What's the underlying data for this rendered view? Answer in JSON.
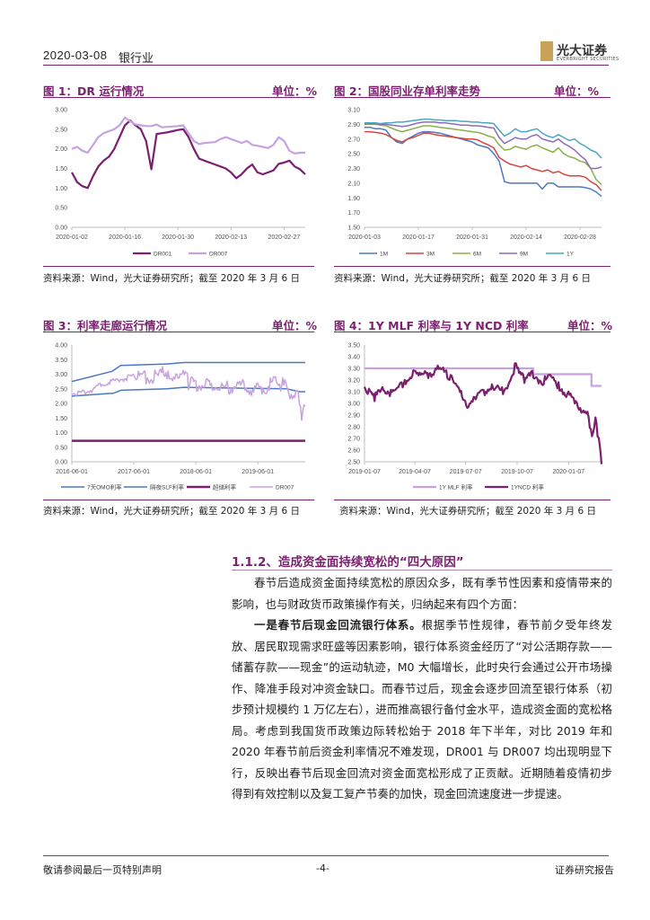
{
  "header": {
    "date": "2020-03-08",
    "industry": "银行业",
    "logo_cn": "光大证券",
    "logo_en": "EVERBRIGHT SECURITIES"
  },
  "colors": {
    "brand": "#7b1f6e",
    "light_purple": "#c8a2e0",
    "blue": "#4a78c4",
    "red": "#d8453a",
    "green": "#8ab04a",
    "mid_purple": "#8c6cb8",
    "teal": "#4aa7c4"
  },
  "charts": [
    {
      "title": "图 1：DR 运行情况",
      "unit": "单位：%",
      "source": "资料来源：Wind，光大证券研究所；截至 2020 年 3 月 6 日",
      "chart_data": {
        "type": "line",
        "ylim": [
          0,
          3
        ],
        "yticks": [
          "0.00",
          "0.50",
          "1.00",
          "1.50",
          "2.00",
          "2.50",
          "3.00"
        ],
        "xticks": [
          "2020-01-02",
          "2020-01-16",
          "2020-01-30",
          "2020-02-13",
          "2020-02-27"
        ],
        "n": 45,
        "series": [
          {
            "name": "DR001",
            "color": "#7b1f6e",
            "values": [
              1.4,
              1.15,
              1.05,
              1.0,
              1.3,
              1.55,
              1.7,
              1.8,
              2.0,
              2.3,
              2.6,
              2.72,
              2.6,
              2.5,
              2.2,
              1.48,
              2.38,
              2.4,
              2.42,
              2.45,
              2.48,
              2.5,
              2.3,
              2.0,
              1.75,
              1.7,
              1.65,
              1.6,
              1.55,
              1.5,
              1.4,
              1.25,
              1.35,
              1.5,
              1.6,
              1.4,
              1.35,
              1.4,
              1.45,
              1.62,
              1.65,
              1.7,
              1.55,
              1.48,
              1.35
            ]
          },
          {
            "name": "DR007",
            "color": "#c8a2e0",
            "values": [
              2.0,
              2.05,
              1.95,
              1.9,
              2.1,
              2.3,
              2.4,
              2.45,
              2.5,
              2.6,
              2.8,
              2.7,
              2.62,
              2.6,
              2.58,
              2.58,
              2.62,
              2.55,
              2.56,
              2.57,
              2.58,
              2.6,
              2.4,
              2.2,
              2.12,
              2.15,
              2.16,
              2.17,
              2.25,
              2.3,
              2.25,
              2.2,
              2.15,
              2.2,
              2.1,
              2.08,
              2.05,
              2.02,
              2.1,
              2.3,
              2.2,
              1.95,
              1.88,
              1.9,
              1.9
            ]
          }
        ]
      }
    },
    {
      "title": "图 2：国股同业存单利率走势",
      "unit": "单位：%",
      "source": "资料来源：Wind，光大证券研究所；截至 2020 年 3 月 6 日",
      "chart_data": {
        "type": "line",
        "ylim": [
          1.5,
          3.1
        ],
        "yticks": [
          "1.50",
          "1.70",
          "1.90",
          "2.10",
          "2.30",
          "2.50",
          "2.70",
          "2.90",
          "3.10"
        ],
        "xticks": [
          "2020-01-03",
          "2020-01-17",
          "2020-01-31",
          "2020-02-14",
          "2020-02-28"
        ],
        "n": 45,
        "series": [
          {
            "name": "1M",
            "color": "#4a78c4",
            "values": [
              2.86,
              2.86,
              2.84,
              2.84,
              2.82,
              2.72,
              2.66,
              2.64,
              2.7,
              2.74,
              2.78,
              2.8,
              2.8,
              2.79,
              2.78,
              2.76,
              2.74,
              2.72,
              2.7,
              2.68,
              2.66,
              2.62,
              2.6,
              2.58,
              2.5,
              2.4,
              2.12,
              2.1,
              2.1,
              2.1,
              2.1,
              2.1,
              2.1,
              2.02,
              2.1,
              2.1,
              2.05,
              2.05,
              2.05,
              2.05,
              2.05,
              2.04,
              2.02,
              1.98,
              1.92
            ]
          },
          {
            "name": "3M",
            "color": "#d8453a",
            "values": [
              2.8,
              2.8,
              2.79,
              2.78,
              2.76,
              2.72,
              2.68,
              2.66,
              2.7,
              2.72,
              2.75,
              2.78,
              2.78,
              2.76,
              2.75,
              2.74,
              2.73,
              2.72,
              2.71,
              2.7,
              2.7,
              2.69,
              2.65,
              2.62,
              2.58,
              2.45,
              2.4,
              2.36,
              2.34,
              2.32,
              2.34,
              2.3,
              2.28,
              2.26,
              2.28,
              2.24,
              2.26,
              2.22,
              2.2,
              2.2,
              2.2,
              2.18,
              2.12,
              2.08,
              2.0
            ]
          },
          {
            "name": "6M",
            "color": "#8ab04a",
            "values": [
              2.9,
              2.9,
              2.9,
              2.89,
              2.88,
              2.85,
              2.82,
              2.8,
              2.82,
              2.84,
              2.86,
              2.88,
              2.88,
              2.87,
              2.86,
              2.85,
              2.84,
              2.83,
              2.82,
              2.81,
              2.8,
              2.79,
              2.77,
              2.74,
              2.72,
              2.62,
              2.55,
              2.56,
              2.6,
              2.58,
              2.56,
              2.6,
              2.62,
              2.58,
              2.55,
              2.52,
              2.58,
              2.5,
              2.46,
              2.44,
              2.4,
              2.38,
              2.3,
              2.15,
              2.08
            ]
          },
          {
            "name": "9M",
            "color": "#8c6cb8",
            "values": [
              2.91,
              2.91,
              2.91,
              2.9,
              2.9,
              2.89,
              2.88,
              2.87,
              2.88,
              2.9,
              2.92,
              2.93,
              2.93,
              2.93,
              2.92,
              2.92,
              2.91,
              2.9,
              2.89,
              2.89,
              2.88,
              2.88,
              2.87,
              2.86,
              2.85,
              2.72,
              2.64,
              2.68,
              2.72,
              2.7,
              2.7,
              2.74,
              2.76,
              2.7,
              2.68,
              2.66,
              2.7,
              2.64,
              2.6,
              2.55,
              2.48,
              2.42,
              2.3,
              2.3,
              2.32
            ]
          },
          {
            "name": "1Y",
            "color": "#4aa7c4",
            "values": [
              2.92,
              2.92,
              2.92,
              2.91,
              2.92,
              2.92,
              2.93,
              2.93,
              2.94,
              2.95,
              2.96,
              2.97,
              2.97,
              2.96,
              2.96,
              2.95,
              2.95,
              2.95,
              2.94,
              2.94,
              2.93,
              2.93,
              2.92,
              2.92,
              2.91,
              2.82,
              2.74,
              2.78,
              2.84,
              2.8,
              2.8,
              2.82,
              2.84,
              2.78,
              2.74,
              2.72,
              2.76,
              2.72,
              2.68,
              2.7,
              2.64,
              2.6,
              2.55,
              2.52,
              2.44
            ]
          }
        ]
      }
    },
    {
      "title": "图 3：利率走廊运行情况",
      "unit": "单位：%",
      "source": "资料来源：Wind，光大证券研究所；截至 2020 年 3 月 6 日",
      "chart_data": {
        "type": "line",
        "ylim": [
          0,
          4
        ],
        "yticks": [
          "0.00",
          "0.50",
          "1.00",
          "1.50",
          "2.00",
          "2.50",
          "3.00",
          "3.50",
          "4.00"
        ],
        "xticks": [
          "2016-06-01",
          "2017-06-01",
          "2018-06-01",
          "2019-06-01"
        ],
        "x_range": [
          "2016-06-01",
          "2020-03-06"
        ],
        "series": [
          {
            "name": "7天OMO利率",
            "color": "#4a78c4",
            "points": [
              [
                "2016-06-01",
                2.25
              ],
              [
                "2017-02-03",
                2.35
              ],
              [
                "2017-03-16",
                2.45
              ],
              [
                "2017-12-14",
                2.5
              ],
              [
                "2018-03-22",
                2.55
              ],
              [
                "2019-11-18",
                2.5
              ],
              [
                "2020-02-03",
                2.4
              ],
              [
                "2020-03-06",
                2.4
              ]
            ]
          },
          {
            "name": "隔夜SLF利率",
            "color": "#4a78c4",
            "points": [
              [
                "2016-06-01",
                2.75
              ],
              [
                "2017-01-24",
                3.1
              ],
              [
                "2017-03-16",
                3.3
              ],
              [
                "2017-12-14",
                3.35
              ],
              [
                "2018-03-22",
                3.4
              ],
              [
                "2020-03-06",
                3.4
              ]
            ]
          },
          {
            "name": "超储利率",
            "color": "#7b1f6e",
            "points": [
              [
                "2016-06-01",
                0.72
              ],
              [
                "2020-03-06",
                0.72
              ]
            ]
          },
          {
            "name": "DR007",
            "color": "#c8a2e0",
            "points": [
              [
                "2016-06-01",
                2.35
              ],
              [
                "2016-09-01",
                2.4
              ],
              [
                "2016-12-15",
                2.7
              ],
              [
                "2017-03-01",
                2.8
              ],
              [
                "2017-06-15",
                2.95
              ],
              [
                "2017-09-20",
                2.85
              ],
              [
                "2017-12-20",
                3.1
              ],
              [
                "2018-02-10",
                3.0
              ],
              [
                "2018-05-01",
                2.7
              ],
              [
                "2018-08-01",
                2.6
              ],
              [
                "2018-11-01",
                2.55
              ],
              [
                "2019-02-01",
                2.6
              ],
              [
                "2019-05-01",
                2.5
              ],
              [
                "2019-08-01",
                2.6
              ],
              [
                "2019-10-01",
                2.75
              ],
              [
                "2019-12-01",
                2.4
              ],
              [
                "2020-01-10",
                2.4
              ],
              [
                "2020-02-01",
                2.2
              ],
              [
                "2020-02-14",
                1.65
              ],
              [
                "2020-03-06",
                1.9
              ]
            ]
          }
        ]
      }
    },
    {
      "title": "图 4：1Y MLF 利率与 1Y NCD 利率",
      "unit": "单位：%",
      "source": "资料来源：Wind，光大证券研究所；截至 2020 年 3 月 6 日",
      "chart_data": {
        "type": "line",
        "ylim": [
          2.5,
          3.5
        ],
        "yticks": [
          "2.50",
          "2.60",
          "2.70",
          "2.80",
          "2.90",
          "3.00",
          "3.10",
          "3.20",
          "3.30",
          "3.40",
          "3.50"
        ],
        "xticks": [
          "2019-01-07",
          "2019-04-07",
          "2019-07-07",
          "2019-10-07",
          "2020-01-07"
        ],
        "x_range": [
          "2019-01-07",
          "2020-03-06"
        ],
        "series": [
          {
            "name": "1Y MLF 利率",
            "color": "#c8a2e0",
            "points": [
              [
                "2019-01-07",
                3.3
              ],
              [
                "2019-11-05",
                3.3
              ],
              [
                "2019-11-05",
                3.25
              ],
              [
                "2020-02-17",
                3.25
              ],
              [
                "2020-02-17",
                3.15
              ],
              [
                "2020-03-06",
                3.15
              ]
            ]
          },
          {
            "name": "1YNCD 利率",
            "color": "#7b1f6e",
            "points": [
              [
                "2019-01-07",
                3.15
              ],
              [
                "2019-01-25",
                3.05
              ],
              [
                "2019-02-10",
                3.12
              ],
              [
                "2019-03-01",
                3.08
              ],
              [
                "2019-03-20",
                3.18
              ],
              [
                "2019-04-10",
                3.28
              ],
              [
                "2019-05-01",
                3.25
              ],
              [
                "2019-05-20",
                3.3
              ],
              [
                "2019-06-10",
                3.22
              ],
              [
                "2019-06-25",
                3.1
              ],
              [
                "2019-07-10",
                3.0
              ],
              [
                "2019-07-25",
                3.05
              ],
              [
                "2019-08-10",
                3.1
              ],
              [
                "2019-08-25",
                3.15
              ],
              [
                "2019-09-10",
                3.1
              ],
              [
                "2019-09-25",
                3.2
              ],
              [
                "2019-10-05",
                3.35
              ],
              [
                "2019-10-20",
                3.2
              ],
              [
                "2019-11-05",
                3.25
              ],
              [
                "2019-11-20",
                3.18
              ],
              [
                "2019-12-05",
                3.22
              ],
              [
                "2019-12-20",
                3.15
              ],
              [
                "2020-01-05",
                3.08
              ],
              [
                "2020-01-20",
                3.0
              ],
              [
                "2020-02-01",
                2.95
              ],
              [
                "2020-02-10",
                2.9
              ],
              [
                "2020-02-18",
                2.75
              ],
              [
                "2020-02-24",
                2.85
              ],
              [
                "2020-03-01",
                2.7
              ],
              [
                "2020-03-06",
                2.48
              ]
            ]
          }
        ]
      }
    }
  ],
  "section": {
    "title": "1.1.2、造成资金面持续宽松的“四大原因”",
    "p1": "春节后造成资金面持续宽松的原因众多，既有季节性因素和疫情带来的影响，也与财政货币政策操作有关，归纳起来有四个方面：",
    "p2_lead": "一是春节后现金回流银行体系。",
    "p2_body": "根据季节性规律，春节前夕受年终发放、居民取现需求旺盛等因素影响，银行体系资金经历了“对公活期存款——储蓄存款——现金”的运动轨迹，M0 大幅增长，此时央行会通过公开市场操作、降准手段对冲资金缺口。而春节过后，现金会逐步回流至银行体系（初步预计规模约 1 万亿左右），进而推高银行备付金水平，造成资金面的宽松格局。考虑到我国货币政策边际转松始于 2018 年下半年，对比 2019 年和 2020 年春节前后资金利率情况不难发现，DR001 与 DR007 均出现明显下行，反映出春节后现金回流对资金面宽松形成了正贡献。近期随着疫情初步得到有效控制以及复工复产节奏的加快，现金回流速度进一步提速。"
  },
  "footer": {
    "left": "敬请参阅最后一页特别声明",
    "center": "-4-",
    "right": "证券研究报告"
  }
}
